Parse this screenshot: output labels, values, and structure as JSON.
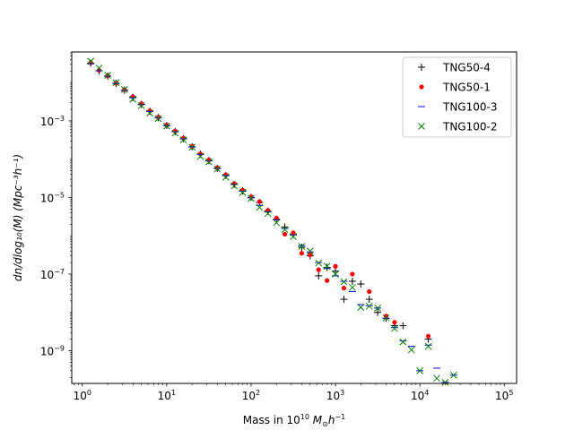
{
  "chart_data": {
    "type": "scatter",
    "x_scale": "log",
    "y_scale": "log",
    "xlim": [
      0.75,
      140000
    ],
    "ylim": [
      1.4e-10,
      0.063
    ],
    "x_ticks": [
      {
        "value": 1,
        "base": "10",
        "exp": "0"
      },
      {
        "value": 10,
        "base": "10",
        "exp": "1"
      },
      {
        "value": 100,
        "base": "10",
        "exp": "2"
      },
      {
        "value": 1000,
        "base": "10",
        "exp": "3"
      },
      {
        "value": 10000,
        "base": "10",
        "exp": "4"
      },
      {
        "value": 100000,
        "base": "10",
        "exp": "5"
      }
    ],
    "y_ticks": [
      {
        "value": 1e-09,
        "base": "10",
        "exp": "−9"
      },
      {
        "value": 1e-07,
        "base": "10",
        "exp": "−7"
      },
      {
        "value": 1e-05,
        "base": "10",
        "exp": "−5"
      },
      {
        "value": 0.001,
        "base": "10",
        "exp": "−3"
      }
    ],
    "xlabel": {
      "prefix": "Mass in 10",
      "exp": "10",
      "mid": " M",
      "sub": "⊙",
      "h": "h",
      "hexp": "−1"
    },
    "ylabel": {
      "text": "dn/dlog₁₀(M) (Mpc⁻³h⁻¹)"
    },
    "grid": false,
    "legend_position": "upper right",
    "series": [
      {
        "name": "TNG50-4",
        "marker": "plus",
        "color": "#000000",
        "points": [
          [
            1.26,
            0.032
          ],
          [
            1.58,
            0.0205
          ],
          [
            2.0,
            0.0148
          ],
          [
            2.51,
            0.0095
          ],
          [
            3.16,
            0.0063
          ],
          [
            3.98,
            0.0041
          ],
          [
            5.01,
            0.0027
          ],
          [
            6.31,
            0.00178
          ],
          [
            7.94,
            0.00122
          ],
          [
            10.0,
            0.00076
          ],
          [
            12.6,
            0.000525
          ],
          [
            15.8,
            0.000345
          ],
          [
            20.0,
            0.00021
          ],
          [
            25.1,
            0.000135
          ],
          [
            31.6,
            9.2e-05
          ],
          [
            39.8,
            5.8e-05
          ],
          [
            50.1,
            3.8e-05
          ],
          [
            63.1,
            2.2e-05
          ],
          [
            79.4,
            1.5e-05
          ],
          [
            100,
            1e-05
          ],
          [
            126,
            7.4e-06
          ],
          [
            158,
            4.4e-06
          ],
          [
            200,
            2.7e-06
          ],
          [
            251,
            1.7e-06
          ],
          [
            316,
            1.1e-06
          ],
          [
            398,
            5e-07
          ],
          [
            501,
            3e-07
          ],
          [
            631,
            9e-08
          ],
          [
            794,
            1.5e-07
          ],
          [
            1000,
            1.2e-07
          ],
          [
            1259,
            2.2e-08
          ],
          [
            1585,
            6.5e-08
          ],
          [
            1995,
            5.5e-08
          ],
          [
            2512,
            2.2e-08
          ],
          [
            3162,
            1e-08
          ],
          [
            3981,
            7e-09
          ],
          [
            5012,
            4.5e-09
          ],
          [
            6310,
            4.5e-09
          ],
          [
            12589,
            2e-09
          ]
        ]
      },
      {
        "name": "TNG50-1",
        "marker": "dot",
        "color": "#ff0000",
        "points": [
          [
            1.26,
            0.033
          ],
          [
            1.58,
            0.021
          ],
          [
            2.0,
            0.015
          ],
          [
            2.51,
            0.0097
          ],
          [
            3.16,
            0.0065
          ],
          [
            3.98,
            0.0043
          ],
          [
            5.01,
            0.0028
          ],
          [
            6.31,
            0.00183
          ],
          [
            7.94,
            0.00125
          ],
          [
            10.0,
            0.00078
          ],
          [
            12.6,
            0.00054
          ],
          [
            15.8,
            0.000355
          ],
          [
            20.0,
            0.000215
          ],
          [
            25.1,
            0.000138
          ],
          [
            31.6,
            9.5e-05
          ],
          [
            39.8,
            6e-05
          ],
          [
            50.1,
            3.9e-05
          ],
          [
            63.1,
            2.3e-05
          ],
          [
            79.4,
            1.55e-05
          ],
          [
            100,
            1.05e-05
          ],
          [
            126,
            7.8e-06
          ],
          [
            158,
            4.6e-06
          ],
          [
            200,
            2.9e-06
          ],
          [
            251,
            1.1e-06
          ],
          [
            316,
            1.2e-06
          ],
          [
            398,
            3.5e-07
          ],
          [
            501,
            3.2e-07
          ],
          [
            631,
            1.3e-07
          ],
          [
            794,
            6.8e-08
          ],
          [
            1000,
            1.6e-07
          ],
          [
            1259,
            4.3e-08
          ],
          [
            1585,
            1e-07
          ],
          [
            2512,
            3.5e-08
          ],
          [
            3981,
            8e-09
          ],
          [
            5012,
            5.5e-09
          ],
          [
            12589,
            2.4e-09
          ]
        ]
      },
      {
        "name": "TNG100-3",
        "marker": "hline",
        "color": "#0000ff",
        "points": [
          [
            1.26,
            0.031
          ],
          [
            1.58,
            0.0203
          ],
          [
            2.0,
            0.0146
          ],
          [
            2.51,
            0.0094
          ],
          [
            3.16,
            0.0062
          ],
          [
            3.98,
            0.004
          ],
          [
            5.01,
            0.00265
          ],
          [
            6.31,
            0.00175
          ],
          [
            7.94,
            0.0012
          ],
          [
            10.0,
            0.00075
          ],
          [
            12.6,
            0.00052
          ],
          [
            15.8,
            0.00034
          ],
          [
            20.0,
            0.000208
          ],
          [
            25.1,
            0.000133
          ],
          [
            31.6,
            9e-05
          ],
          [
            39.8,
            5.7e-05
          ],
          [
            50.1,
            3.7e-05
          ],
          [
            63.1,
            2.2e-05
          ],
          [
            79.4,
            1.45e-05
          ],
          [
            100,
            9.8e-06
          ],
          [
            126,
            6.2e-06
          ],
          [
            158,
            4.2e-06
          ],
          [
            200,
            2.6e-06
          ],
          [
            251,
            1.55e-06
          ],
          [
            316,
            1.05e-06
          ],
          [
            398,
            5.5e-07
          ],
          [
            501,
            3.8e-07
          ],
          [
            631,
            2e-07
          ],
          [
            794,
            1.4e-07
          ],
          [
            1000,
            9e-08
          ],
          [
            1259,
            6.5e-08
          ],
          [
            1585,
            3.5e-08
          ],
          [
            1995,
            1.6e-08
          ],
          [
            2512,
            1.5e-08
          ],
          [
            3162,
            1.3e-08
          ],
          [
            3981,
            7e-09
          ],
          [
            5012,
            4e-09
          ],
          [
            6310,
            1.8e-09
          ],
          [
            7943,
            1.3e-09
          ],
          [
            10000,
            3e-10
          ],
          [
            12589,
            1.4e-09
          ],
          [
            15849,
            3.5e-10
          ],
          [
            19953,
            1.5e-10
          ],
          [
            25119,
            2.3e-10
          ]
        ]
      },
      {
        "name": "TNG100-2",
        "marker": "x",
        "color": "#008000",
        "points": [
          [
            1.26,
            0.036
          ],
          [
            1.58,
            0.024
          ],
          [
            2.0,
            0.0155
          ],
          [
            2.51,
            0.0099
          ],
          [
            3.16,
            0.0066
          ],
          [
            3.98,
            0.0037
          ],
          [
            5.01,
            0.0025
          ],
          [
            6.31,
            0.0016
          ],
          [
            7.94,
            0.00115
          ],
          [
            10.0,
            0.00073
          ],
          [
            12.6,
            0.00048
          ],
          [
            15.8,
            0.00032
          ],
          [
            20.0,
            0.000205
          ],
          [
            25.1,
            0.000118
          ],
          [
            31.6,
            8.5e-05
          ],
          [
            39.8,
            5.5e-05
          ],
          [
            50.1,
            3.4e-05
          ],
          [
            63.1,
            2e-05
          ],
          [
            79.4,
            1.35e-05
          ],
          [
            100,
            9.5e-06
          ],
          [
            126,
            5.5e-06
          ],
          [
            158,
            3.8e-06
          ],
          [
            200,
            2.2e-06
          ],
          [
            251,
            1.45e-06
          ],
          [
            316,
            9.5e-07
          ],
          [
            398,
            5.3e-07
          ],
          [
            501,
            4e-07
          ],
          [
            631,
            1.95e-07
          ],
          [
            794,
            1.6e-07
          ],
          [
            1000,
            1e-07
          ],
          [
            1259,
            6.3e-08
          ],
          [
            1585,
            4.5e-08
          ],
          [
            1995,
            1.35e-08
          ],
          [
            2512,
            1.45e-08
          ],
          [
            3162,
            1.3e-08
          ],
          [
            3981,
            7.2e-09
          ],
          [
            5012,
            3.8e-09
          ],
          [
            6310,
            1.7e-09
          ],
          [
            7943,
            1.05e-09
          ],
          [
            10000,
            3e-10
          ],
          [
            12589,
            1.3e-09
          ],
          [
            15849,
            1.9e-10
          ],
          [
            19953,
            1.5e-10
          ],
          [
            25119,
            2.3e-10
          ]
        ]
      }
    ]
  }
}
